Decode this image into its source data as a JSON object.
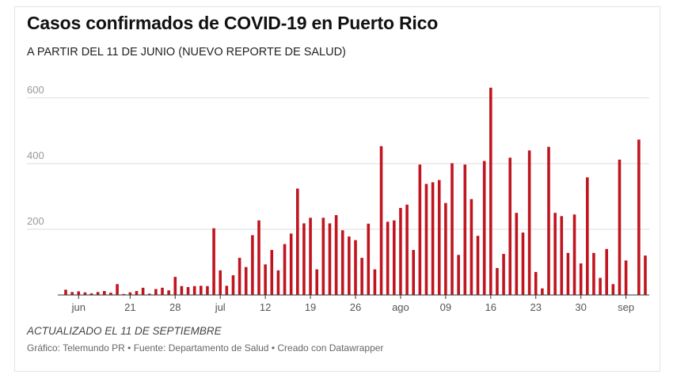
{
  "header": {
    "title": "Casos confirmados de COVID-19 en Puerto Rico",
    "subtitle": "A PARTIR DEL 11 DE JUNIO (NUEVO REPORTE DE SALUD)"
  },
  "footer": {
    "updated": "ACTUALIZADO EL 11 DE SEPTIEMBRE",
    "source": "Gráfico: Telemundo PR • Fuente: Departamento de Salud • Creado con Datawrapper"
  },
  "colors": {
    "bar": "#c0151f",
    "grid": "#dddddd",
    "axis": "#333333"
  },
  "chart_data": {
    "type": "bar",
    "title": "Casos confirmados de COVID-19 en Puerto Rico",
    "subtitle": "A PARTIR DEL 11 DE JUNIO (NUEVO REPORTE DE SALUD)",
    "ylim": [
      0,
      650
    ],
    "yticks": [
      200,
      400,
      600
    ],
    "grid": true,
    "x_ticks": [
      {
        "label": "jun",
        "index": 2
      },
      {
        "label": "21",
        "index": 10
      },
      {
        "label": "28",
        "index": 17
      },
      {
        "label": "jul",
        "index": 24
      },
      {
        "label": "12",
        "index": 31
      },
      {
        "label": "19",
        "index": 38
      },
      {
        "label": "26",
        "index": 45
      },
      {
        "label": "ago",
        "index": 52
      },
      {
        "label": "09",
        "index": 59
      },
      {
        "label": "16",
        "index": 66
      },
      {
        "label": "23",
        "index": 73
      },
      {
        "label": "30",
        "index": 80
      },
      {
        "label": "sep",
        "index": 87
      }
    ],
    "values": [
      16,
      9,
      11,
      8,
      5,
      9,
      12,
      7,
      33,
      3,
      8,
      12,
      22,
      4,
      18,
      22,
      14,
      55,
      27,
      24,
      27,
      28,
      27,
      203,
      75,
      28,
      60,
      113,
      85,
      182,
      227,
      93,
      137,
      75,
      155,
      187,
      324,
      218,
      235,
      78,
      235,
      218,
      243,
      197,
      178,
      167,
      113,
      217,
      78,
      453,
      223,
      227,
      265,
      275,
      137,
      397,
      338,
      343,
      350,
      280,
      401,
      122,
      397,
      292,
      180,
      408,
      631,
      82,
      125,
      418,
      250,
      190,
      440,
      70,
      20,
      451,
      250,
      240,
      128,
      245,
      96,
      358,
      128,
      52,
      140,
      33,
      412,
      105,
      0,
      473,
      120
    ]
  }
}
